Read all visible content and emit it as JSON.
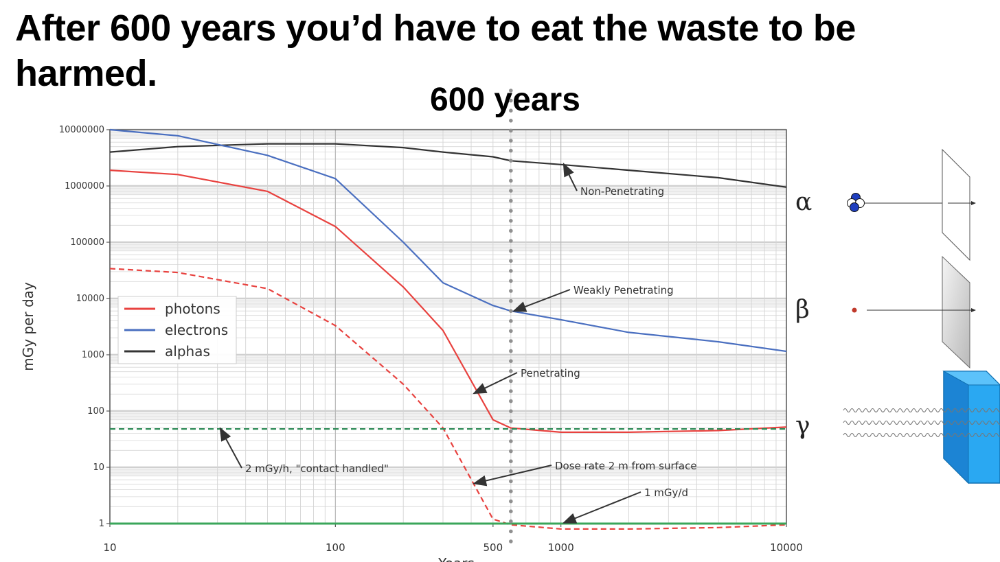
{
  "slide": {
    "title": "After 600 years you’d have to eat the waste to be harmed.",
    "marker_label": "600 years",
    "marker_year": 600
  },
  "chart_data": {
    "type": "line",
    "xscale": "log",
    "yscale": "log",
    "xlim": [
      10,
      10000
    ],
    "ylim": [
      1,
      10000000
    ],
    "xlabel": "Years",
    "ylabel": "mGy per day",
    "x_ticks": [
      {
        "value": 10,
        "label": "10"
      },
      {
        "value": 100,
        "label": "100"
      },
      {
        "value": 500,
        "label": "500"
      },
      {
        "value": 1000,
        "label": "1000"
      },
      {
        "value": 10000,
        "label": "10000"
      }
    ],
    "y_ticks": [
      {
        "value": 1,
        "label": "1"
      },
      {
        "value": 10,
        "label": "10"
      },
      {
        "value": 100,
        "label": "100"
      },
      {
        "value": 1000,
        "label": "1000"
      },
      {
        "value": 10000,
        "label": "10000"
      },
      {
        "value": 100000,
        "label": "100000"
      },
      {
        "value": 1000000,
        "label": "1000000"
      },
      {
        "value": 10000000,
        "label": "10000000"
      }
    ],
    "grid": true,
    "legend_position": "center-left",
    "legend": [
      {
        "name": "photons",
        "color": "#e8423f"
      },
      {
        "name": "electrons",
        "color": "#4a6fc0"
      },
      {
        "name": "alphas",
        "color": "#333333"
      }
    ],
    "series": [
      {
        "name": "alphas",
        "color": "#333333",
        "style": "solid",
        "points": [
          [
            10,
            4000000
          ],
          [
            20,
            5000000
          ],
          [
            50,
            5600000
          ],
          [
            100,
            5600000
          ],
          [
            200,
            4800000
          ],
          [
            300,
            4000000
          ],
          [
            500,
            3300000
          ],
          [
            600,
            2800000
          ],
          [
            1000,
            2400000
          ],
          [
            2000,
            1900000
          ],
          [
            5000,
            1400000
          ],
          [
            10000,
            950000
          ]
        ]
      },
      {
        "name": "electrons",
        "color": "#4a6fc0",
        "style": "solid",
        "points": [
          [
            10,
            10000000
          ],
          [
            20,
            7800000
          ],
          [
            50,
            3500000
          ],
          [
            100,
            1350000
          ],
          [
            200,
            100000
          ],
          [
            300,
            19000
          ],
          [
            500,
            7500
          ],
          [
            600,
            6000
          ],
          [
            1000,
            4200
          ],
          [
            2000,
            2500
          ],
          [
            5000,
            1700
          ],
          [
            10000,
            1150
          ]
        ]
      },
      {
        "name": "photons",
        "color": "#e8423f",
        "style": "solid",
        "points": [
          [
            10,
            1900000
          ],
          [
            20,
            1600000
          ],
          [
            50,
            800000
          ],
          [
            100,
            190000
          ],
          [
            200,
            16000
          ],
          [
            300,
            2700
          ],
          [
            500,
            70
          ],
          [
            600,
            50
          ],
          [
            1000,
            42
          ],
          [
            2000,
            42
          ],
          [
            5000,
            45
          ],
          [
            10000,
            52
          ]
        ]
      },
      {
        "name": "photons (2 m from surface)",
        "color": "#e8423f",
        "style": "dashed",
        "points": [
          [
            10,
            34000
          ],
          [
            20,
            29000
          ],
          [
            50,
            15000
          ],
          [
            100,
            3300
          ],
          [
            200,
            300
          ],
          [
            300,
            50
          ],
          [
            500,
            1.2
          ],
          [
            600,
            0.95
          ],
          [
            1000,
            0.8
          ],
          [
            2000,
            0.8
          ],
          [
            5000,
            0.85
          ],
          [
            10000,
            0.95
          ]
        ]
      },
      {
        "name": "2 mGy/h",
        "color": "#2e8b57",
        "style": "dashed",
        "constant": 48
      },
      {
        "name": "1 mGy/d",
        "color": "#3aa65a",
        "style": "solid",
        "constant": 1
      }
    ],
    "annotations": [
      {
        "text": "Non-Penetrating",
        "point": [
          1000,
          2400000
        ]
      },
      {
        "text": "Weakly Penetrating",
        "point": [
          600,
          5800
        ]
      },
      {
        "text": "Penetrating",
        "point": [
          400,
          200
        ]
      },
      {
        "text": "2 mGy/h, \"contact handled\"",
        "point": [
          30,
          48
        ]
      },
      {
        "text": "Dose rate 2 m from surface",
        "point": [
          400,
          5
        ]
      },
      {
        "text": "1 mGy/d",
        "point": [
          1000,
          1
        ]
      }
    ]
  },
  "radiation_types": [
    {
      "symbol": "α",
      "particle_color": "#1f3fbf"
    },
    {
      "symbol": "β",
      "particle_color": "#c0392b"
    },
    {
      "symbol": "γ",
      "particle_color": "#1aa6ee"
    }
  ]
}
